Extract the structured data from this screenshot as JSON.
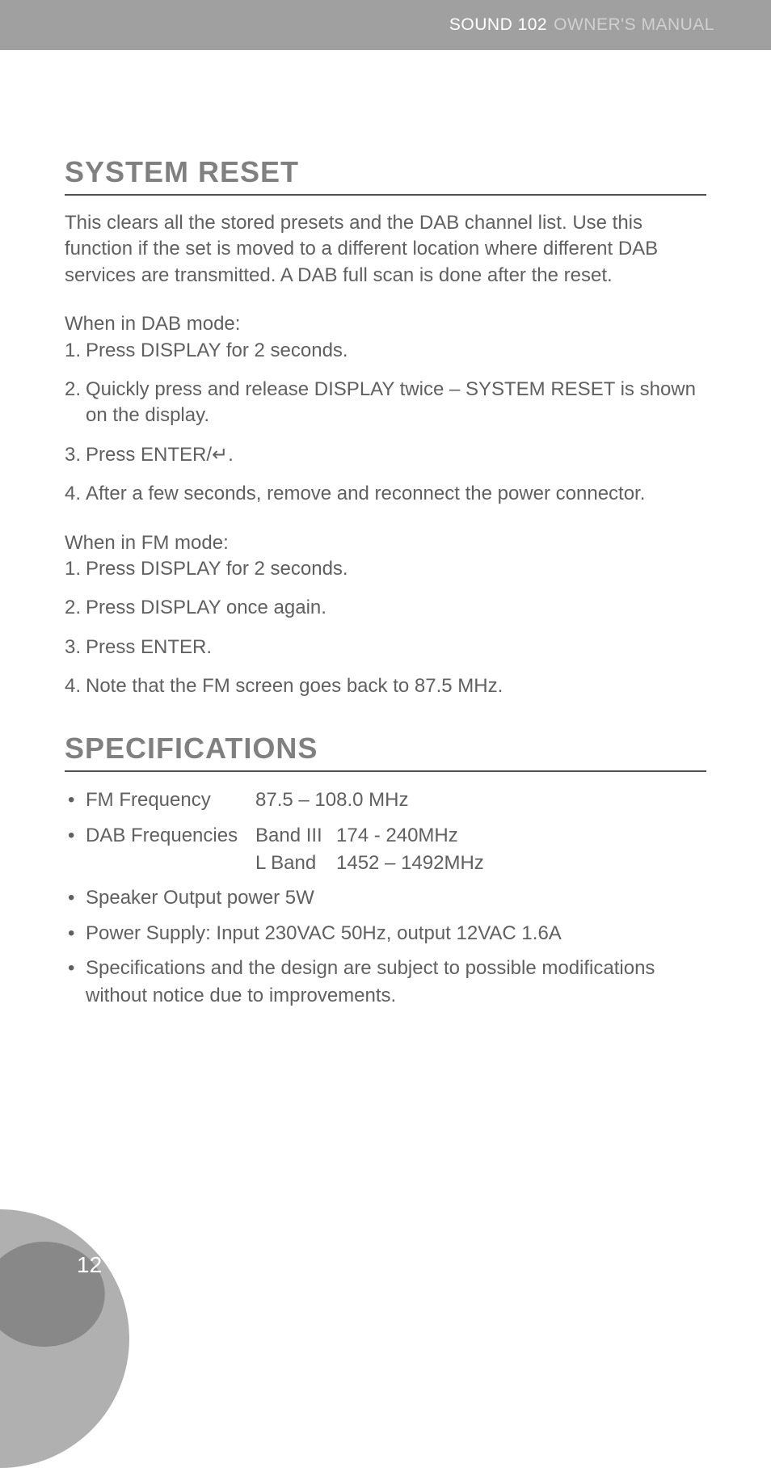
{
  "header": {
    "product": "SOUND 102",
    "label": "OWNER'S MANUAL"
  },
  "section1": {
    "title": "SYSTEM RESET",
    "intro": "This clears all the stored presets and the DAB channel list. Use this function if the set is moved to a different location where different DAB services are transmitted.  A DAB full scan is done after the reset.",
    "dab_label": "When in DAB mode:",
    "dab_steps": [
      "Press DISPLAY for 2 seconds.",
      "Quickly press and release DISPLAY twice – SYSTEM RESET is shown on the display.",
      "Press ENTER/↵.",
      "After a few seconds, remove and reconnect the power connector."
    ],
    "fm_label": "When in FM mode:",
    "fm_steps": [
      "Press DISPLAY for 2 seconds.",
      "Press DISPLAY once again.",
      "Press ENTER.",
      "Note that the FM screen goes back to 87.5 MHz."
    ]
  },
  "section2": {
    "title": "SPECIFICATIONS",
    "fm_freq_label": "FM Frequency",
    "fm_freq_value": "87.5 – 108.0 MHz",
    "dab_freq_label": "DAB Frequencies",
    "dab_band3_label": "Band III",
    "dab_band3_value": "174 - 240MHz",
    "dab_lband_label": "L Band",
    "dab_lband_value": "1452 – 1492MHz",
    "speaker": "Speaker Output power 5W",
    "power": "Power Supply:  Input 230VAC 50Hz, output 12VAC 1.6A",
    "notice": "Specifications and the design are subject to possible modifications without notice due to improvements."
  },
  "page_number": "12"
}
